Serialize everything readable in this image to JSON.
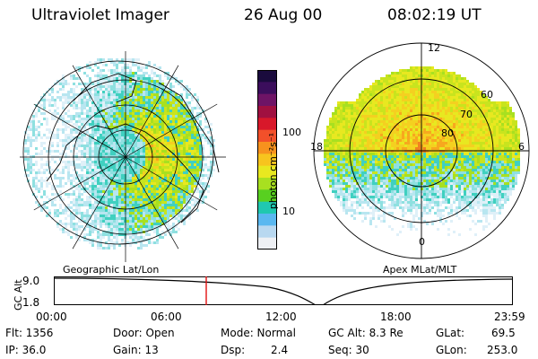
{
  "header": {
    "instrument": "Ultraviolet Imager",
    "date": "26 Aug 00",
    "time": "08:02:19 UT"
  },
  "colorbar": {
    "unit_label": "photon cm⁻²s⁻¹",
    "tick_labels": [
      "100",
      "10"
    ],
    "colors": [
      "#1a0b3d",
      "#3b0e5c",
      "#6e1466",
      "#a01040",
      "#d8182a",
      "#f2502a",
      "#f7921e",
      "#f7c41e",
      "#e8e820",
      "#a8e020",
      "#58d020",
      "#20c8b0",
      "#5ab8f0",
      "#b8d8f0",
      "#eef0f4"
    ]
  },
  "panels": {
    "left_caption": "Geographic Lat/Lon",
    "right_caption": "Apex MLat/MLT",
    "mlt_labels": {
      "top": "12",
      "left": "18",
      "right": "6",
      "bottom": "0"
    },
    "mlat_labels": [
      "60",
      "70",
      "80"
    ]
  },
  "altitude_plot": {
    "axis_label": "GC Alt",
    "y_ticks": [
      "9.0",
      "1.8"
    ],
    "x_ticks": [
      "00:00",
      "06:00",
      "12:00",
      "18:00",
      "23:59"
    ],
    "marker_color": "#e01010"
  },
  "info": {
    "row1": {
      "flt": "Flt: 1356",
      "door": "Door: Open",
      "mode": "Mode: Normal",
      "gcalt": "GC Alt: 8.3 Re",
      "glat_label": "GLat:",
      "glat_value": "69.5"
    },
    "row2": {
      "ip": "IP: 36.0",
      "gain": "Gain: 13",
      "dsp_label": "Dsp:",
      "dsp_value": "2.4",
      "seq": "Seq: 30",
      "glon_label": "GLon:",
      "glon_value": "253.0"
    }
  }
}
